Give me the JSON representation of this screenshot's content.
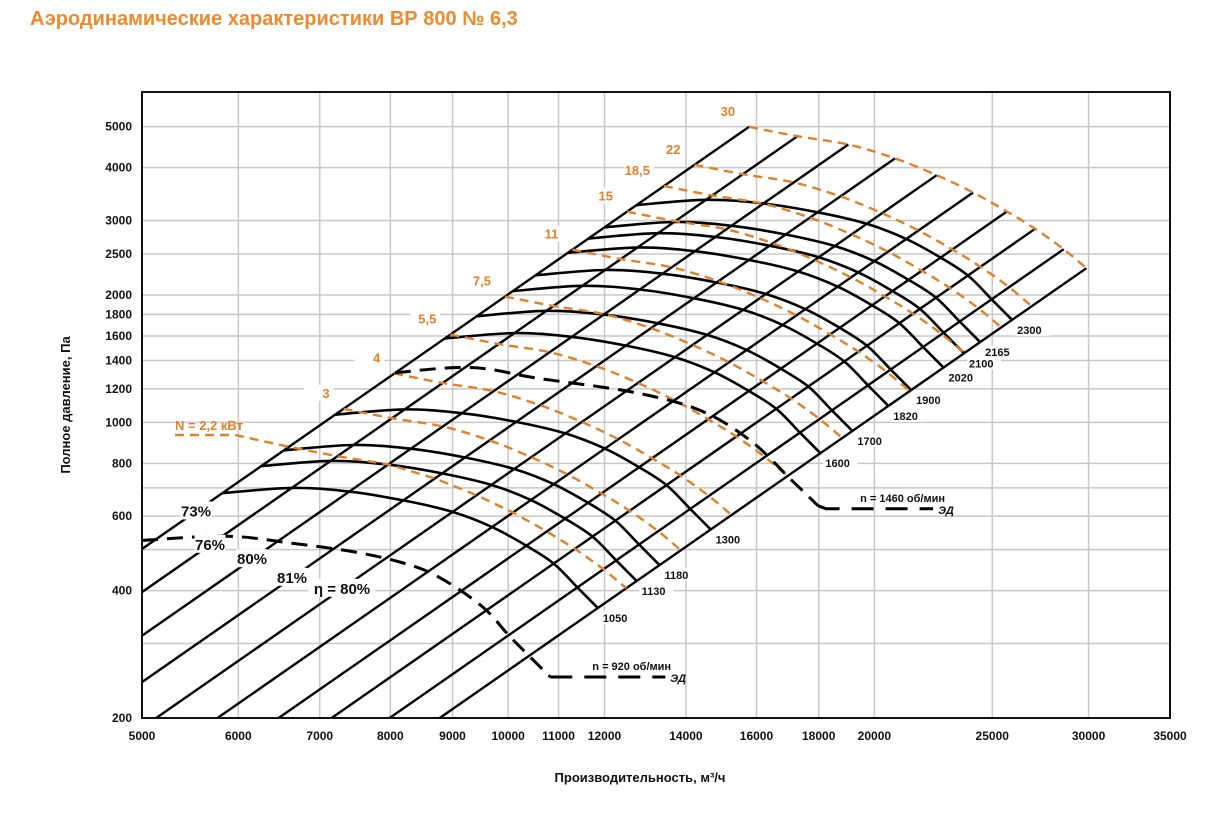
{
  "title": "Аэродинамические характеристики ВР 800 № 6,3",
  "colors": {
    "accent": "#ee8a2b",
    "power_curve": "#e0802a",
    "curve": "#000000",
    "grid": "#c8c8c8"
  },
  "chart_data": {
    "type": "line",
    "title": "Аэродинамические характеристики ВР 800 № 6,3",
    "xlabel": "Производительность, м³/ч",
    "ylabel": "Полное давление, Па",
    "xscale": "log",
    "yscale": "log",
    "xlim": [
      5000,
      35000
    ],
    "ylim": [
      200,
      6000
    ],
    "grid": true,
    "x_ticks": [
      "5000",
      "6000",
      "7000",
      "8000",
      "9000",
      "10000",
      "11000",
      "12000",
      "14000",
      "16000",
      "18000",
      "20000",
      "25000",
      "30000",
      "35000"
    ],
    "y_ticks": [
      "200",
      "400",
      "600",
      "800",
      "1000",
      "1200",
      "1400",
      "1600",
      "1800",
      "2000",
      "2500",
      "3000",
      "4000",
      "5000"
    ],
    "base_speed": 1050,
    "base_curve": [
      [
        5820,
        680
      ],
      [
        6640,
        700
      ],
      [
        7740,
        680
      ],
      [
        9360,
        598
      ],
      [
        10770,
        480
      ],
      [
        11850,
        364
      ]
    ],
    "speed_curves": [
      "1050",
      "1130",
      "1180",
      "1300",
      "1600",
      "1700",
      "1820",
      "1900",
      "2020",
      "2100",
      "2165",
      "2300"
    ],
    "efficiency_rays": [
      {
        "q": 5820,
        "eta": 0.73,
        "label": "73%"
      },
      {
        "q": 6640,
        "eta": 0.76,
        "label": "76%"
      },
      {
        "q": 7400,
        "eta": 0.8,
        "label": "80%"
      },
      {
        "q": 8200,
        "eta": 0.81,
        "label": "81%"
      },
      {
        "q": 9000,
        "eta": 0.8,
        "label": "η = 80%"
      },
      {
        "q": 9700,
        "eta": 0.78,
        "label": ""
      },
      {
        "q": 10350,
        "eta": 0.75,
        "label": ""
      },
      {
        "q": 10900,
        "eta": 0.72,
        "label": ""
      },
      {
        "q": 11400,
        "eta": 0.68,
        "label": ""
      },
      {
        "q": 11850,
        "eta": 0.64,
        "label": ""
      }
    ],
    "power_curves": [
      {
        "kw": 2.2,
        "label": "N = 2,2 кВт"
      },
      {
        "kw": 3,
        "label": "3"
      },
      {
        "kw": 4,
        "label": "4"
      },
      {
        "kw": 5.5,
        "label": "5,5"
      },
      {
        "kw": 7.5,
        "label": "7,5"
      },
      {
        "kw": 11,
        "label": "11"
      },
      {
        "kw": 15,
        "label": "15"
      },
      {
        "kw": 18.5,
        "label": "18,5"
      },
      {
        "kw": 22,
        "label": "22"
      },
      {
        "kw": 30,
        "label": "30"
      }
    ],
    "motor_curves": [
      {
        "label": "n = 920 об/мин",
        "tag": "ЭД",
        "points": [
          [
            5000,
            526
          ],
          [
            5870,
            538
          ],
          [
            6640,
            518
          ],
          [
            7470,
            494
          ],
          [
            8200,
            465
          ],
          [
            8780,
            430
          ],
          [
            9530,
            366
          ],
          [
            10050,
            310
          ],
          [
            10830,
            250
          ]
        ]
      },
      {
        "label": "n = 1460 об/мин",
        "tag": "ЭД",
        "points": [
          [
            8070,
            1310
          ],
          [
            9320,
            1348
          ],
          [
            10600,
            1270
          ],
          [
            12630,
            1180
          ],
          [
            14350,
            1070
          ],
          [
            15800,
            908
          ],
          [
            17100,
            730
          ],
          [
            17980,
            635
          ]
        ]
      }
    ]
  }
}
